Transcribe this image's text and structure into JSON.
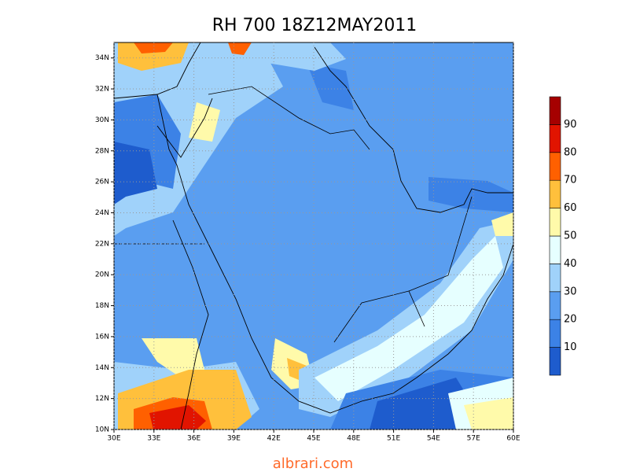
{
  "title": "RH 700 18Z12MAY2011",
  "map": {
    "xlim": [
      30,
      60
    ],
    "ylim": [
      10,
      35
    ],
    "xticks": [
      {
        "value": 30,
        "label": "30E"
      },
      {
        "value": 33,
        "label": "33E"
      },
      {
        "value": 36,
        "label": "36E"
      },
      {
        "value": 39,
        "label": "39E"
      },
      {
        "value": 42,
        "label": "42E"
      },
      {
        "value": 45,
        "label": "45E"
      },
      {
        "value": 48,
        "label": "48E"
      },
      {
        "value": 51,
        "label": "51E"
      },
      {
        "value": 54,
        "label": "54E"
      },
      {
        "value": 57,
        "label": "57E"
      },
      {
        "value": 60,
        "label": "60E"
      }
    ],
    "yticks": [
      {
        "value": 10,
        "label": "10N"
      },
      {
        "value": 12,
        "label": "12N"
      },
      {
        "value": 14,
        "label": "14N"
      },
      {
        "value": 16,
        "label": "16N"
      },
      {
        "value": 18,
        "label": "18N"
      },
      {
        "value": 20,
        "label": "20N"
      },
      {
        "value": 22,
        "label": "22N"
      },
      {
        "value": 24,
        "label": "24N"
      },
      {
        "value": 26,
        "label": "26N"
      },
      {
        "value": 28,
        "label": "28N"
      },
      {
        "value": 30,
        "label": "30N"
      },
      {
        "value": 32,
        "label": "32N"
      },
      {
        "value": 34,
        "label": "34N"
      }
    ],
    "grid": true
  },
  "colorbar": {
    "lim": [
      0,
      100
    ],
    "ticks": [
      10,
      20,
      30,
      40,
      50,
      60,
      70,
      80,
      90
    ],
    "colors": [
      "#1e5ccd",
      "#3c82e6",
      "#5a9ef0",
      "#a0d2fa",
      "#e6ffff",
      "#fffaaa",
      "#ffc03c",
      "#ff6000",
      "#e11400",
      "#a50000"
    ]
  },
  "watermark": "albrari.com"
}
